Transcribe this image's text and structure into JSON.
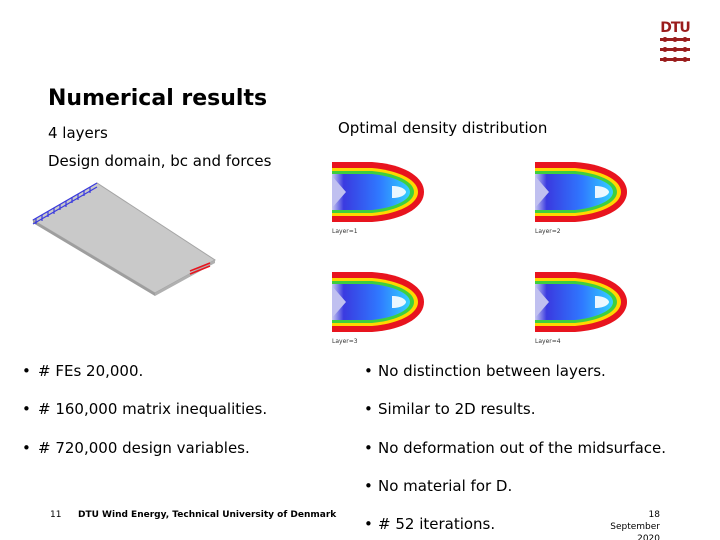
{
  "logo": {
    "text": "DTU"
  },
  "slide": {
    "title": "Numerical results",
    "subtitle_layers": "4 layers",
    "design_domain_label": "Design domain, bc and forces",
    "optimal_label": "Optimal density distribution"
  },
  "plots": [
    {
      "label": "Layer=1"
    },
    {
      "label": "Layer=2"
    },
    {
      "label": "Layer=3"
    },
    {
      "label": "Layer=4"
    }
  ],
  "left_bullets": [
    "# FEs 20,000.",
    "# 160,000 matrix inequalities.",
    "# 720,000 design variables."
  ],
  "right_bullets": [
    "No distinction between layers.",
    "Similar to 2D results.",
    "No deformation out of the midsurface.",
    "No material for D.",
    "# 52 iterations."
  ],
  "footer": {
    "page_number": "11",
    "organization": "DTU Wind Energy, Technical University of Denmark",
    "date_line1": "18",
    "date_line2": "September",
    "date_line3": "2020"
  },
  "colors": {
    "dtu_red": "#990000",
    "density_high": "#e8141e",
    "density_low": "#3a3ae0"
  }
}
